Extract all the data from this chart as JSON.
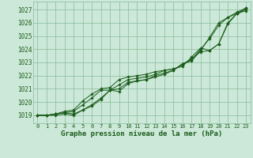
{
  "bg_color": "#cce8d8",
  "grid_color": "#88bb99",
  "line_color": "#1a5c1a",
  "title": "Graphe pression niveau de la mer (hPa)",
  "title_color": "#1a5c1a",
  "ylim": [
    1018.4,
    1027.6
  ],
  "xlim": [
    -0.5,
    23.5
  ],
  "yticks": [
    1019,
    1020,
    1021,
    1022,
    1023,
    1024,
    1025,
    1026,
    1027
  ],
  "xticks": [
    0,
    1,
    2,
    3,
    4,
    5,
    6,
    7,
    8,
    9,
    10,
    11,
    12,
    13,
    14,
    15,
    16,
    17,
    18,
    19,
    20,
    21,
    22,
    23
  ],
  "series": [
    [
      1019.0,
      1019.0,
      1019.1,
      1019.2,
      1019.1,
      1019.4,
      1019.7,
      1020.2,
      1020.9,
      1020.8,
      1021.4,
      1021.6,
      1021.7,
      1021.9,
      1022.1,
      1022.4,
      1022.9,
      1023.1,
      1023.9,
      1024.9,
      1026.0,
      1026.4,
      1026.7,
      1027.1
    ],
    [
      1019.0,
      1019.0,
      1019.1,
      1019.2,
      1019.3,
      1019.8,
      1020.3,
      1020.9,
      1020.9,
      1021.3,
      1021.7,
      1021.8,
      1021.9,
      1022.1,
      1022.4,
      1022.5,
      1022.7,
      1023.4,
      1024.1,
      1023.9,
      1024.4,
      1025.9,
      1026.7,
      1027.0
    ],
    [
      1019.0,
      1019.0,
      1019.0,
      1019.1,
      1019.0,
      1019.4,
      1019.8,
      1020.3,
      1020.9,
      1021.0,
      1021.5,
      1021.6,
      1021.7,
      1022.0,
      1022.2,
      1022.4,
      1022.9,
      1023.2,
      1024.0,
      1024.8,
      1025.8,
      1026.4,
      1026.8,
      1027.1
    ],
    [
      1019.0,
      1019.0,
      1019.1,
      1019.3,
      1019.4,
      1020.1,
      1020.6,
      1021.0,
      1021.1,
      1021.7,
      1021.9,
      1022.0,
      1022.1,
      1022.3,
      1022.4,
      1022.5,
      1022.8,
      1023.3,
      1023.8,
      1023.9,
      1024.4,
      1026.0,
      1026.7,
      1026.9
    ]
  ]
}
